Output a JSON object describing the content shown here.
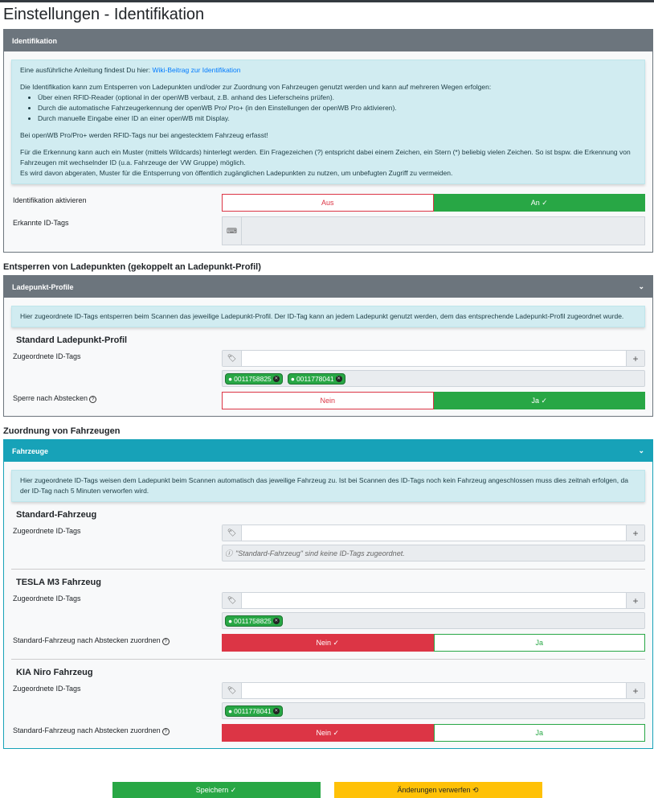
{
  "page_title": "Einstellungen - Identifikation",
  "ident": {
    "header": "Identifikation",
    "intro": "Eine ausführliche Anleitung findest Du hier: ",
    "wiki_link": "Wiki-Beitrag zur Identifikation",
    "p1": "Die Identifikation kann zum Entsperren von Ladepunkten und/oder zur Zuordnung von Fahrzeugen genutzt werden und kann auf mehreren Wegen erfolgen:",
    "bullets": [
      "Über einen RFID-Reader (optional in der openWB verbaut, z.B. anhand des Lieferscheins prüfen).",
      "Durch die automatische Fahrzeugerkennung der openWB Pro/ Pro+ (in den Einstellungen der openWB Pro aktivieren).",
      "Durch manuelle Eingabe einer ID an einer openWB mit Display."
    ],
    "p2": "Bei openWB Pro/Pro+ werden RFID-Tags nur bei angestecktem Fahrzeug erfasst!",
    "p3a": "Für die Erkennung kann auch ein Muster (mittels Wildcards) hinterlegt werden. Ein Fragezeichen (?) entspricht dabei einem Zeichen, ein Stern (*) beliebig vielen Zeichen. So ist bspw. die Erkennung von Fahrzeugen mit wechselnder ID (u.a. Fahrzeuge der VW Gruppe) möglich.",
    "p3b": "Es wird davon abgeraten, Muster für die Entsperrung von öffentlich zugänglichen Ladepunkten zu nutzen, um unbefugten Zugriff zu vermeiden.",
    "activate_label": "Identifikation aktivieren",
    "off": "Aus",
    "on": "An ✓",
    "activate_value": "An",
    "detected_label": "Erkannte ID-Tags",
    "detected_value": ""
  },
  "unlock": {
    "heading": "Entsperren von Ladepunkten (gekoppelt an Ladepunkt-Profil)",
    "header": "Ladepunkt-Profile",
    "info": "Hier zugeordnete ID-Tags entsperren beim Scannen das jeweilige Ladepunkt-Profil. Der ID-Tag kann an jedem Ladepunkt genutzt werden, dem das entsprechende Ladepunkt-Profil zugeordnet wurde.",
    "profile": "Standard Ladepunkt-Profil",
    "tags_label": "Zugeordnete ID-Tags",
    "tags": [
      "0011758825",
      "0011778041"
    ],
    "lock_label": "Sperre nach Abstecken",
    "no": "Nein",
    "yes": "Ja ✓",
    "lock_value": "Ja"
  },
  "vehicles": {
    "heading": "Zuordnung von Fahrzeugen",
    "header": "Fahrzeuge",
    "info": "Hier zugeordnete ID-Tags weisen dem Ladepunkt beim Scannen automatisch das jeweilige Fahrzeug zu. Ist bei Scannen des ID-Tags noch kein Fahrzeug angeschlossen muss dies zeitnah erfolgen, da der ID-Tag nach 5 Minuten verworfen wird.",
    "tags_label": "Zugeordnete ID-Tags",
    "assign_label": "Standard-Fahrzeug nach Abstecken zuordnen",
    "no": "Nein ✓",
    "yes": "Ja",
    "items": [
      {
        "name": "Standard-Fahrzeug",
        "empty": "\"Standard-Fahrzeug\" sind keine ID-Tags zugeordnet."
      },
      {
        "name": "TESLA M3 Fahrzeug",
        "tags": [
          "0011758825"
        ],
        "assign_value": "Nein"
      },
      {
        "name": "KIA Niro Fahrzeug",
        "tags": [
          "0011778041"
        ],
        "assign_value": "Nein"
      }
    ]
  },
  "footer": {
    "save": "Speichern ✓",
    "discard": "Änderungen verwerfen ⟲"
  }
}
